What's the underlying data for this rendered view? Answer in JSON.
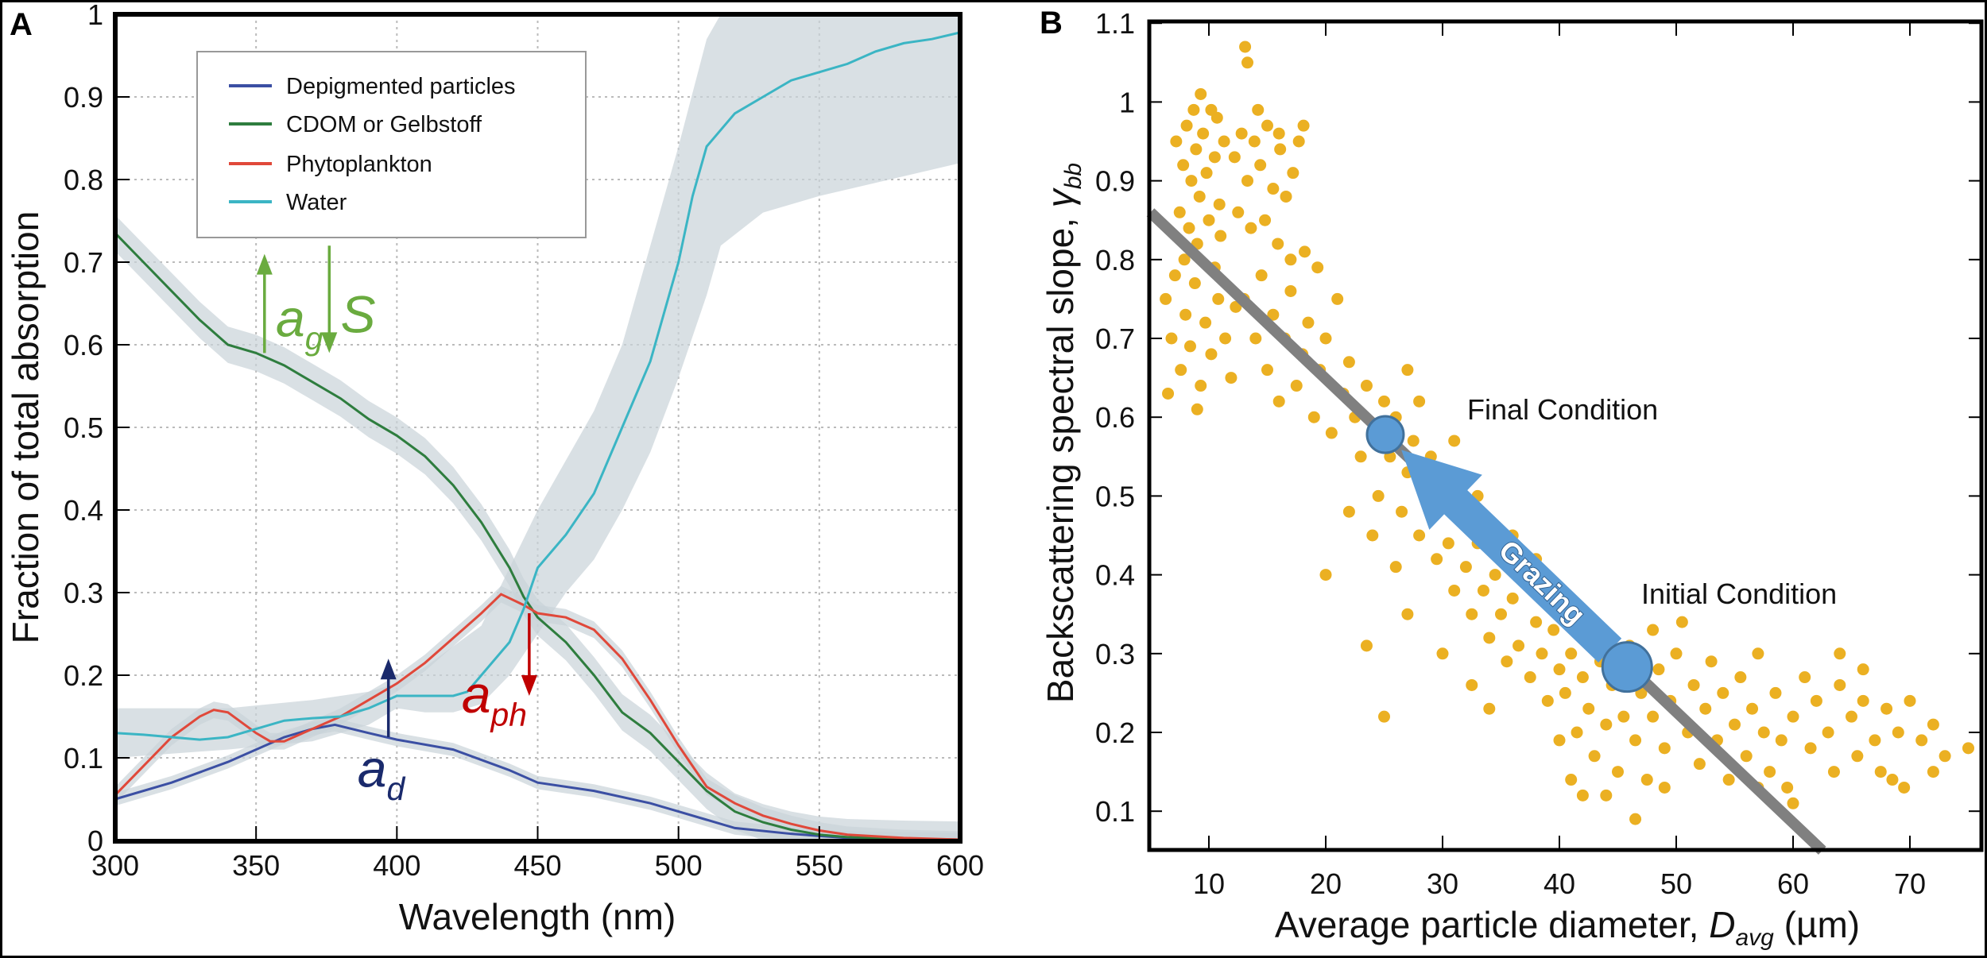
{
  "chart_data": [
    {
      "panel_label": "A",
      "type": "line",
      "xlabel": "Wavelength (nm)",
      "ylabel": "Fraction of total absorption",
      "xlim": [
        300,
        600
      ],
      "ylim": [
        0,
        1
      ],
      "xticks": [
        300,
        350,
        400,
        450,
        500,
        550,
        600
      ],
      "xtick_labels": [
        "300",
        "350",
        "400",
        "450",
        "500",
        "550",
        "600"
      ],
      "yticks": [
        0,
        0.1,
        0.2,
        0.3,
        0.4,
        0.5,
        0.6,
        0.7,
        0.8,
        0.9,
        1
      ],
      "ytick_labels": [
        "0",
        "0.1",
        "0.2",
        "0.3",
        "0.4",
        "0.5",
        "0.6",
        "0.7",
        "0.8",
        "0.9",
        "1"
      ],
      "grid": true,
      "legend_placement": "top-left",
      "series": [
        {
          "name": "Depigmented particles",
          "color": "#3B4FA3",
          "x": [
            300,
            320,
            340,
            360,
            370,
            378,
            390,
            400,
            420,
            440,
            450,
            470,
            490,
            500,
            510,
            520,
            540,
            560,
            600
          ],
          "y": [
            0.05,
            0.07,
            0.095,
            0.125,
            0.135,
            0.14,
            0.13,
            0.122,
            0.11,
            0.085,
            0.07,
            0.06,
            0.045,
            0.035,
            0.025,
            0.015,
            0.008,
            0.003,
            0.001
          ],
          "band_halfwidth": 0.008
        },
        {
          "name": "CDOM  or Gelbstoff",
          "color": "#2E7D3E",
          "x": [
            300,
            310,
            320,
            330,
            340,
            350,
            360,
            370,
            380,
            390,
            400,
            410,
            420,
            430,
            440,
            445,
            450,
            460,
            470,
            480,
            490,
            500,
            510,
            520,
            530,
            540,
            550,
            560,
            580,
            600
          ],
          "y": [
            0.735,
            0.7,
            0.665,
            0.63,
            0.6,
            0.59,
            0.575,
            0.555,
            0.535,
            0.51,
            0.49,
            0.465,
            0.43,
            0.385,
            0.33,
            0.295,
            0.27,
            0.24,
            0.2,
            0.155,
            0.13,
            0.095,
            0.06,
            0.035,
            0.022,
            0.013,
            0.007,
            0.004,
            0.002,
            0.001
          ],
          "band_halfwidth": 0.022
        },
        {
          "name": "Phytoplankton",
          "color": "#E0483A",
          "x": [
            300,
            310,
            320,
            330,
            335,
            340,
            350,
            355,
            360,
            370,
            380,
            390,
            400,
            410,
            420,
            430,
            437,
            445,
            450,
            460,
            470,
            480,
            490,
            500,
            510,
            520,
            530,
            540,
            550,
            560,
            580,
            600
          ],
          "y": [
            0.055,
            0.09,
            0.125,
            0.15,
            0.158,
            0.155,
            0.13,
            0.12,
            0.12,
            0.135,
            0.15,
            0.17,
            0.19,
            0.215,
            0.245,
            0.275,
            0.298,
            0.285,
            0.275,
            0.27,
            0.255,
            0.22,
            0.17,
            0.115,
            0.065,
            0.045,
            0.03,
            0.02,
            0.012,
            0.007,
            0.003,
            0.001
          ],
          "band_halfwidth": 0.01
        },
        {
          "name": "Water",
          "color": "#3BB5C4",
          "x": [
            300,
            310,
            320,
            330,
            340,
            350,
            360,
            370,
            380,
            390,
            400,
            410,
            420,
            425,
            430,
            440,
            445,
            450,
            460,
            470,
            480,
            490,
            500,
            505,
            510,
            520,
            530,
            540,
            550,
            560,
            570,
            580,
            590,
            600
          ],
          "y": [
            0.13,
            0.128,
            0.125,
            0.122,
            0.125,
            0.135,
            0.145,
            0.148,
            0.15,
            0.16,
            0.175,
            0.175,
            0.175,
            0.18,
            0.2,
            0.24,
            0.28,
            0.33,
            0.37,
            0.42,
            0.5,
            0.58,
            0.7,
            0.78,
            0.84,
            0.88,
            0.9,
            0.92,
            0.93,
            0.94,
            0.955,
            0.965,
            0.97,
            0.978
          ],
          "band": {
            "x": [
              300,
              340,
              370,
              390,
              400,
              410,
              420,
              430,
              440,
              450,
              460,
              470,
              480,
              490,
              500,
              510,
              515,
              530,
              550,
              575,
              600
            ],
            "lower": [
              0.1,
              0.11,
              0.12,
              0.14,
              0.16,
              0.155,
              0.155,
              0.165,
              0.2,
              0.25,
              0.3,
              0.34,
              0.4,
              0.47,
              0.56,
              0.66,
              0.72,
              0.76,
              0.78,
              0.8,
              0.82
            ],
            "upper": [
              0.16,
              0.16,
              0.17,
              0.18,
              0.19,
              0.21,
              0.235,
              0.26,
              0.33,
              0.4,
              0.46,
              0.52,
              0.6,
              0.72,
              0.84,
              0.97,
              1.0,
              1.0,
              1.0,
              1.0,
              1.0
            ]
          }
        }
      ],
      "annotations": {
        "ag": {
          "main": "a",
          "sub": "g",
          "color": "#6AAB3F",
          "arrow": "up",
          "x": 353,
          "from": 0.59,
          "to": 0.71
        },
        "S": {
          "text": "S",
          "color": "#6AAB3F",
          "arrow": "down",
          "x": 376,
          "from": 0.72,
          "to": 0.59
        },
        "aph": {
          "main": "a",
          "sub": "ph",
          "color": "#C00000",
          "arrow": "down",
          "x": 447,
          "from": 0.275,
          "to": 0.175
        },
        "ad": {
          "main": "a",
          "sub": "d",
          "color": "#1A2A6C",
          "arrow": "up",
          "x": 397,
          "from": 0.125,
          "to": 0.22
        }
      }
    },
    {
      "panel_label": "B",
      "type": "scatter",
      "xlabel_main": "Average particle diameter, ",
      "xlabel_var": "D",
      "xlabel_sub": "avg",
      "xlabel_unit": " (µm)",
      "ylabel_main": "Backscattering spectral slope, ",
      "ylabel_var": "γ",
      "ylabel_sub": "bb",
      "xlim": [
        5,
        76
      ],
      "ylim": [
        0.05,
        1.1
      ],
      "xticks": [
        10,
        20,
        30,
        40,
        50,
        60,
        70
      ],
      "xtick_labels": [
        "10",
        "20",
        "30",
        "40",
        "50",
        "60",
        "70"
      ],
      "yticks": [
        0.1,
        0.2,
        0.3,
        0.4,
        0.5,
        0.6,
        0.7,
        0.8,
        0.9,
        1,
        1.1
      ],
      "ytick_labels": [
        "0.1",
        "0.2",
        "0.3",
        "0.4",
        "0.5",
        "0.6",
        "0.7",
        "0.8",
        "0.9",
        "1",
        "1.1"
      ],
      "grid": false,
      "point_color": "#EBB022",
      "trend_line": {
        "color": "#808080",
        "x": [
          5,
          62.5
        ],
        "y": [
          0.86,
          0.05
        ]
      },
      "final_condition": {
        "label": "Final Condition",
        "x": 25.1,
        "y": 0.578,
        "color": "#5B9BD5"
      },
      "initial_condition": {
        "label": "Initial Condition",
        "x": 45.8,
        "y": 0.283,
        "color": "#5B9BD5"
      },
      "arrow_label": "Grazing",
      "points": [
        [
          7.2,
          0.95
        ],
        [
          7.8,
          0.92
        ],
        [
          8.1,
          0.97
        ],
        [
          8.5,
          0.9
        ],
        [
          8.9,
          0.94
        ],
        [
          9.2,
          0.88
        ],
        [
          9.5,
          0.96
        ],
        [
          9.8,
          0.91
        ],
        [
          10.2,
          0.99
        ],
        [
          10.5,
          0.93
        ],
        [
          10.9,
          0.87
        ],
        [
          11.3,
          0.95
        ],
        [
          7.5,
          0.86
        ],
        [
          8.3,
          0.84
        ],
        [
          9.0,
          0.82
        ],
        [
          10.0,
          0.85
        ],
        [
          11.0,
          0.83
        ],
        [
          9.3,
          1.01
        ],
        [
          10.7,
          0.98
        ],
        [
          8.7,
          0.99
        ],
        [
          12.2,
          0.93
        ],
        [
          12.8,
          0.96
        ],
        [
          13.3,
          0.9
        ],
        [
          13.9,
          0.95
        ],
        [
          14.4,
          0.92
        ],
        [
          15.0,
          0.97
        ],
        [
          15.5,
          0.89
        ],
        [
          16.1,
          0.94
        ],
        [
          16.6,
          0.88
        ],
        [
          17.2,
          0.91
        ],
        [
          12.5,
          0.86
        ],
        [
          13.6,
          0.84
        ],
        [
          14.8,
          0.85
        ],
        [
          15.9,
          0.82
        ],
        [
          17.0,
          0.8
        ],
        [
          13.1,
          1.07
        ],
        [
          13.3,
          1.05
        ],
        [
          14.2,
          0.99
        ],
        [
          16.0,
          0.96
        ],
        [
          18.1,
          0.97
        ],
        [
          17.7,
          0.95
        ],
        [
          6.3,
          0.75
        ],
        [
          6.8,
          0.7
        ],
        [
          7.1,
          0.78
        ],
        [
          7.6,
          0.66
        ],
        [
          8.0,
          0.73
        ],
        [
          8.4,
          0.69
        ],
        [
          8.8,
          0.77
        ],
        [
          9.3,
          0.64
        ],
        [
          9.7,
          0.72
        ],
        [
          10.2,
          0.68
        ],
        [
          10.8,
          0.75
        ],
        [
          11.4,
          0.7
        ],
        [
          11.9,
          0.65
        ],
        [
          6.5,
          0.63
        ],
        [
          7.9,
          0.8
        ],
        [
          10.5,
          0.79
        ],
        [
          12.3,
          0.74
        ],
        [
          9.0,
          0.61
        ],
        [
          13,
          0.75
        ],
        [
          14,
          0.7
        ],
        [
          14.5,
          0.78
        ],
        [
          15,
          0.66
        ],
        [
          15.5,
          0.73
        ],
        [
          16,
          0.62
        ],
        [
          16.5,
          0.7
        ],
        [
          17,
          0.76
        ],
        [
          17.5,
          0.64
        ],
        [
          18,
          0.68
        ],
        [
          18.5,
          0.72
        ],
        [
          19,
          0.6
        ],
        [
          19.5,
          0.66
        ],
        [
          20,
          0.7
        ],
        [
          20.5,
          0.58
        ],
        [
          21,
          0.75
        ],
        [
          19.3,
          0.79
        ],
        [
          18.2,
          0.81
        ],
        [
          21.5,
          0.63
        ],
        [
          22,
          0.67
        ],
        [
          22.5,
          0.6
        ],
        [
          23,
          0.55
        ],
        [
          23.5,
          0.64
        ],
        [
          24,
          0.58
        ],
        [
          24.5,
          0.5
        ],
        [
          25,
          0.62
        ],
        [
          25.5,
          0.55
        ],
        [
          26,
          0.6
        ],
        [
          26.5,
          0.48
        ],
        [
          27,
          0.53
        ],
        [
          27.5,
          0.57
        ],
        [
          28,
          0.45
        ],
        [
          28.5,
          0.51
        ],
        [
          29,
          0.55
        ],
        [
          29.5,
          0.42
        ],
        [
          30,
          0.49
        ],
        [
          22,
          0.48
        ],
        [
          24,
          0.45
        ],
        [
          26,
          0.41
        ],
        [
          27,
          0.66
        ],
        [
          20,
          0.4
        ],
        [
          23.5,
          0.31
        ],
        [
          28,
          0.62
        ],
        [
          31,
          0.57
        ],
        [
          30.5,
          0.44
        ],
        [
          31,
          0.38
        ],
        [
          31.5,
          0.47
        ],
        [
          32,
          0.41
        ],
        [
          32.5,
          0.35
        ],
        [
          33,
          0.44
        ],
        [
          33.5,
          0.38
        ],
        [
          34,
          0.32
        ],
        [
          34.5,
          0.4
        ],
        [
          35,
          0.35
        ],
        [
          35.5,
          0.29
        ],
        [
          36,
          0.37
        ],
        [
          36.5,
          0.31
        ],
        [
          37,
          0.41
        ],
        [
          37.5,
          0.27
        ],
        [
          38,
          0.34
        ],
        [
          38.5,
          0.3
        ],
        [
          39,
          0.24
        ],
        [
          39.5,
          0.33
        ],
        [
          40,
          0.28
        ],
        [
          30,
          0.3
        ],
        [
          32.5,
          0.26
        ],
        [
          34,
          0.23
        ],
        [
          36,
          0.45
        ],
        [
          33,
          0.5
        ],
        [
          25,
          0.22
        ],
        [
          27,
          0.35
        ],
        [
          38,
          0.42
        ],
        [
          40.5,
          0.25
        ],
        [
          41,
          0.3
        ],
        [
          41.5,
          0.2
        ],
        [
          42,
          0.27
        ],
        [
          42.5,
          0.23
        ],
        [
          43,
          0.17
        ],
        [
          43.5,
          0.29
        ],
        [
          44,
          0.21
        ],
        [
          44.5,
          0.26
        ],
        [
          45,
          0.15
        ],
        [
          45.5,
          0.22
        ],
        [
          46,
          0.31
        ],
        [
          46.5,
          0.19
        ],
        [
          47,
          0.25
        ],
        [
          47.5,
          0.14
        ],
        [
          48,
          0.22
        ],
        [
          48.5,
          0.28
        ],
        [
          49,
          0.18
        ],
        [
          49.5,
          0.24
        ],
        [
          50,
          0.3
        ],
        [
          41,
          0.14
        ],
        [
          42,
          0.12
        ],
        [
          44,
          0.12
        ],
        [
          46.5,
          0.09
        ],
        [
          49,
          0.13
        ],
        [
          40,
          0.19
        ],
        [
          43,
          0.33
        ],
        [
          48,
          0.33
        ],
        [
          50.5,
          0.34
        ],
        [
          51,
          0.2
        ],
        [
          51.5,
          0.26
        ],
        [
          52,
          0.16
        ],
        [
          52.5,
          0.23
        ],
        [
          53,
          0.29
        ],
        [
          53.5,
          0.19
        ],
        [
          54,
          0.25
        ],
        [
          54.5,
          0.14
        ],
        [
          55,
          0.21
        ],
        [
          55.5,
          0.27
        ],
        [
          56,
          0.17
        ],
        [
          56.5,
          0.23
        ],
        [
          57,
          0.3
        ],
        [
          57.5,
          0.2
        ],
        [
          58,
          0.15
        ],
        [
          58.5,
          0.25
        ],
        [
          59,
          0.19
        ],
        [
          59.5,
          0.13
        ],
        [
          60,
          0.22
        ],
        [
          61,
          0.27
        ],
        [
          61.5,
          0.18
        ],
        [
          62,
          0.24
        ],
        [
          63,
          0.2
        ],
        [
          63.5,
          0.15
        ],
        [
          64,
          0.26
        ],
        [
          65,
          0.22
        ],
        [
          65.5,
          0.17
        ],
        [
          66,
          0.24
        ],
        [
          67,
          0.19
        ],
        [
          67.5,
          0.15
        ],
        [
          68,
          0.23
        ],
        [
          69,
          0.2
        ],
        [
          69.5,
          0.13
        ],
        [
          70,
          0.24
        ],
        [
          71,
          0.19
        ],
        [
          72,
          0.21
        ],
        [
          72,
          0.15
        ],
        [
          73,
          0.17
        ],
        [
          75,
          0.18
        ],
        [
          68.5,
          0.14
        ],
        [
          66,
          0.28
        ],
        [
          64,
          0.3
        ],
        [
          60,
          0.11
        ],
        [
          57,
          0.13
        ]
      ]
    }
  ]
}
